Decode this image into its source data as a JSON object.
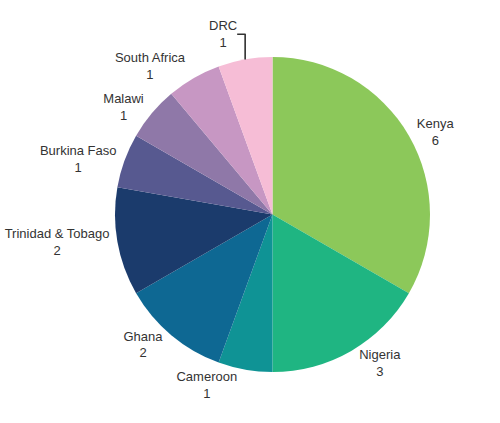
{
  "chart_data": {
    "type": "pie",
    "categories": [
      "Kenya",
      "Nigeria",
      "Cameroon",
      "Ghana",
      "Trinidad & Tobago",
      "Burkina Faso",
      "Malawi",
      "South Africa",
      "DRC"
    ],
    "values": [
      6,
      3,
      1,
      2,
      2,
      1,
      1,
      1,
      1
    ],
    "colors": [
      "#8cc85a",
      "#1fb582",
      "#0f9395",
      "#0e6893",
      "#1b3b6c",
      "#575990",
      "#8f78a8",
      "#c797c3",
      "#f6bdd6"
    ],
    "data_labels": true
  }
}
